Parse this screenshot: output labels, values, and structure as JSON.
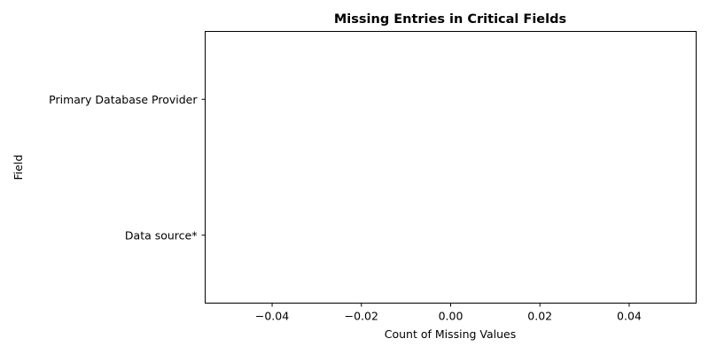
{
  "chart_data": {
    "type": "bar",
    "orientation": "horizontal",
    "title": "Missing Entries in Critical Fields",
    "xlabel": "Count of Missing Values",
    "ylabel": "Field",
    "categories": [
      "Data source*",
      "Primary Database Provider"
    ],
    "values": [
      0,
      0
    ],
    "xlim": [
      -0.055,
      0.055
    ],
    "xticks": [
      -0.04,
      -0.02,
      0.0,
      0.02,
      0.04
    ],
    "xtick_labels": [
      "−0.04",
      "−0.02",
      "0.00",
      "0.02",
      "0.04"
    ],
    "grid": false,
    "colors": {
      "bar": "#1f77b4",
      "axes": "#000000",
      "background": "#ffffff"
    }
  }
}
